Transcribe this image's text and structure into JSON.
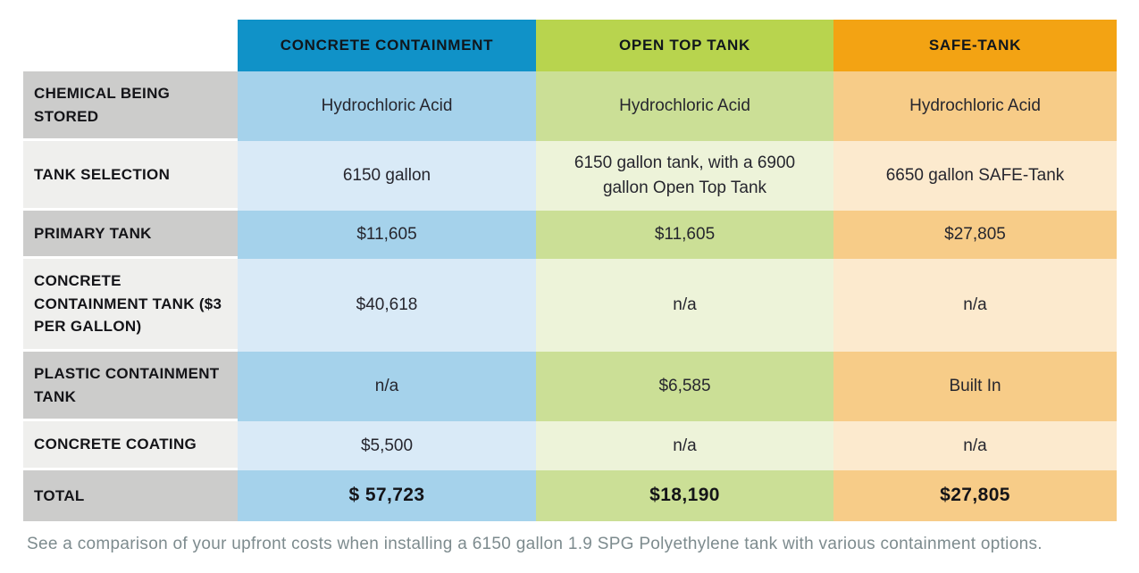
{
  "table": {
    "label_bg_dark": "#cccccb",
    "label_bg_light": "#efefed",
    "columns": [
      {
        "header": "CONCRETE CONTAINMENT",
        "header_bg": "#1092c8",
        "cell_bg": "#a5d2eb",
        "cell_bg_alt": "#d9eaf7"
      },
      {
        "header": "OPEN TOP TANK",
        "header_bg": "#b8d44e",
        "cell_bg": "#cbdf96",
        "cell_bg_alt": "#edf3d9"
      },
      {
        "header": "SAFE-TANK",
        "header_bg": "#f3a313",
        "cell_bg": "#f7cc88",
        "cell_bg_alt": "#fceace"
      }
    ],
    "rows": [
      {
        "label": "CHEMICAL BEING STORED",
        "values": [
          "Hydrochloric Acid",
          "Hydrochloric Acid",
          "Hydrochloric Acid"
        ]
      },
      {
        "label": "TANK SELECTION",
        "values": [
          "6150 gallon",
          "6150 gallon tank, with a 6900 gallon Open Top Tank",
          "6650 gallon SAFE-Tank"
        ]
      },
      {
        "label": "PRIMARY TANK",
        "values": [
          "$11,605",
          "$11,605",
          "$27,805"
        ]
      },
      {
        "label": "CONCRETE CONTAINMENT TANK ($3 PER GALLON)",
        "values": [
          "$40,618",
          "n/a",
          "n/a"
        ]
      },
      {
        "label": "PLASTIC CONTAINMENT TANK",
        "values": [
          "n/a",
          "$6,585",
          "Built In"
        ]
      },
      {
        "label": "CONCRETE COATING",
        "values": [
          "$5,500",
          "n/a",
          "n/a"
        ]
      },
      {
        "label": "TOTAL",
        "values": [
          "$ 57,723",
          "$18,190",
          "$27,805"
        ]
      }
    ]
  },
  "footer": {
    "caption": "See a comparison of your upfront costs when installing a 6150 gallon 1.9 SPG Polyethylene tank with various containment options."
  },
  "chart_data": {
    "type": "table",
    "title": "Upfront cost comparison of tank containment options",
    "categories": [
      "CONCRETE CONTAINMENT",
      "OPEN TOP TANK",
      "SAFE-TANK"
    ],
    "row_labels": [
      "CHEMICAL BEING STORED",
      "TANK SELECTION",
      "PRIMARY TANK",
      "CONCRETE CONTAINMENT TANK ($3 PER GALLON)",
      "PLASTIC CONTAINMENT TANK",
      "CONCRETE COATING",
      "TOTAL"
    ],
    "series": [
      {
        "name": "CONCRETE CONTAINMENT",
        "values": [
          "Hydrochloric Acid",
          "6150 gallon",
          11605,
          40618,
          null,
          5500,
          57723
        ]
      },
      {
        "name": "OPEN TOP TANK",
        "values": [
          "Hydrochloric Acid",
          "6150 gallon tank, with a 6900 gallon Open Top Tank",
          11605,
          null,
          6585,
          null,
          18190
        ]
      },
      {
        "name": "SAFE-TANK",
        "values": [
          "Hydrochloric Acid",
          "6650 gallon SAFE-Tank",
          27805,
          null,
          "Built In",
          null,
          27805
        ]
      }
    ],
    "totals": [
      57723,
      18190,
      27805
    ],
    "caption": "See a comparison of your upfront costs when installing a 6150 gallon 1.9 SPG Polyethylene tank with various containment options."
  }
}
